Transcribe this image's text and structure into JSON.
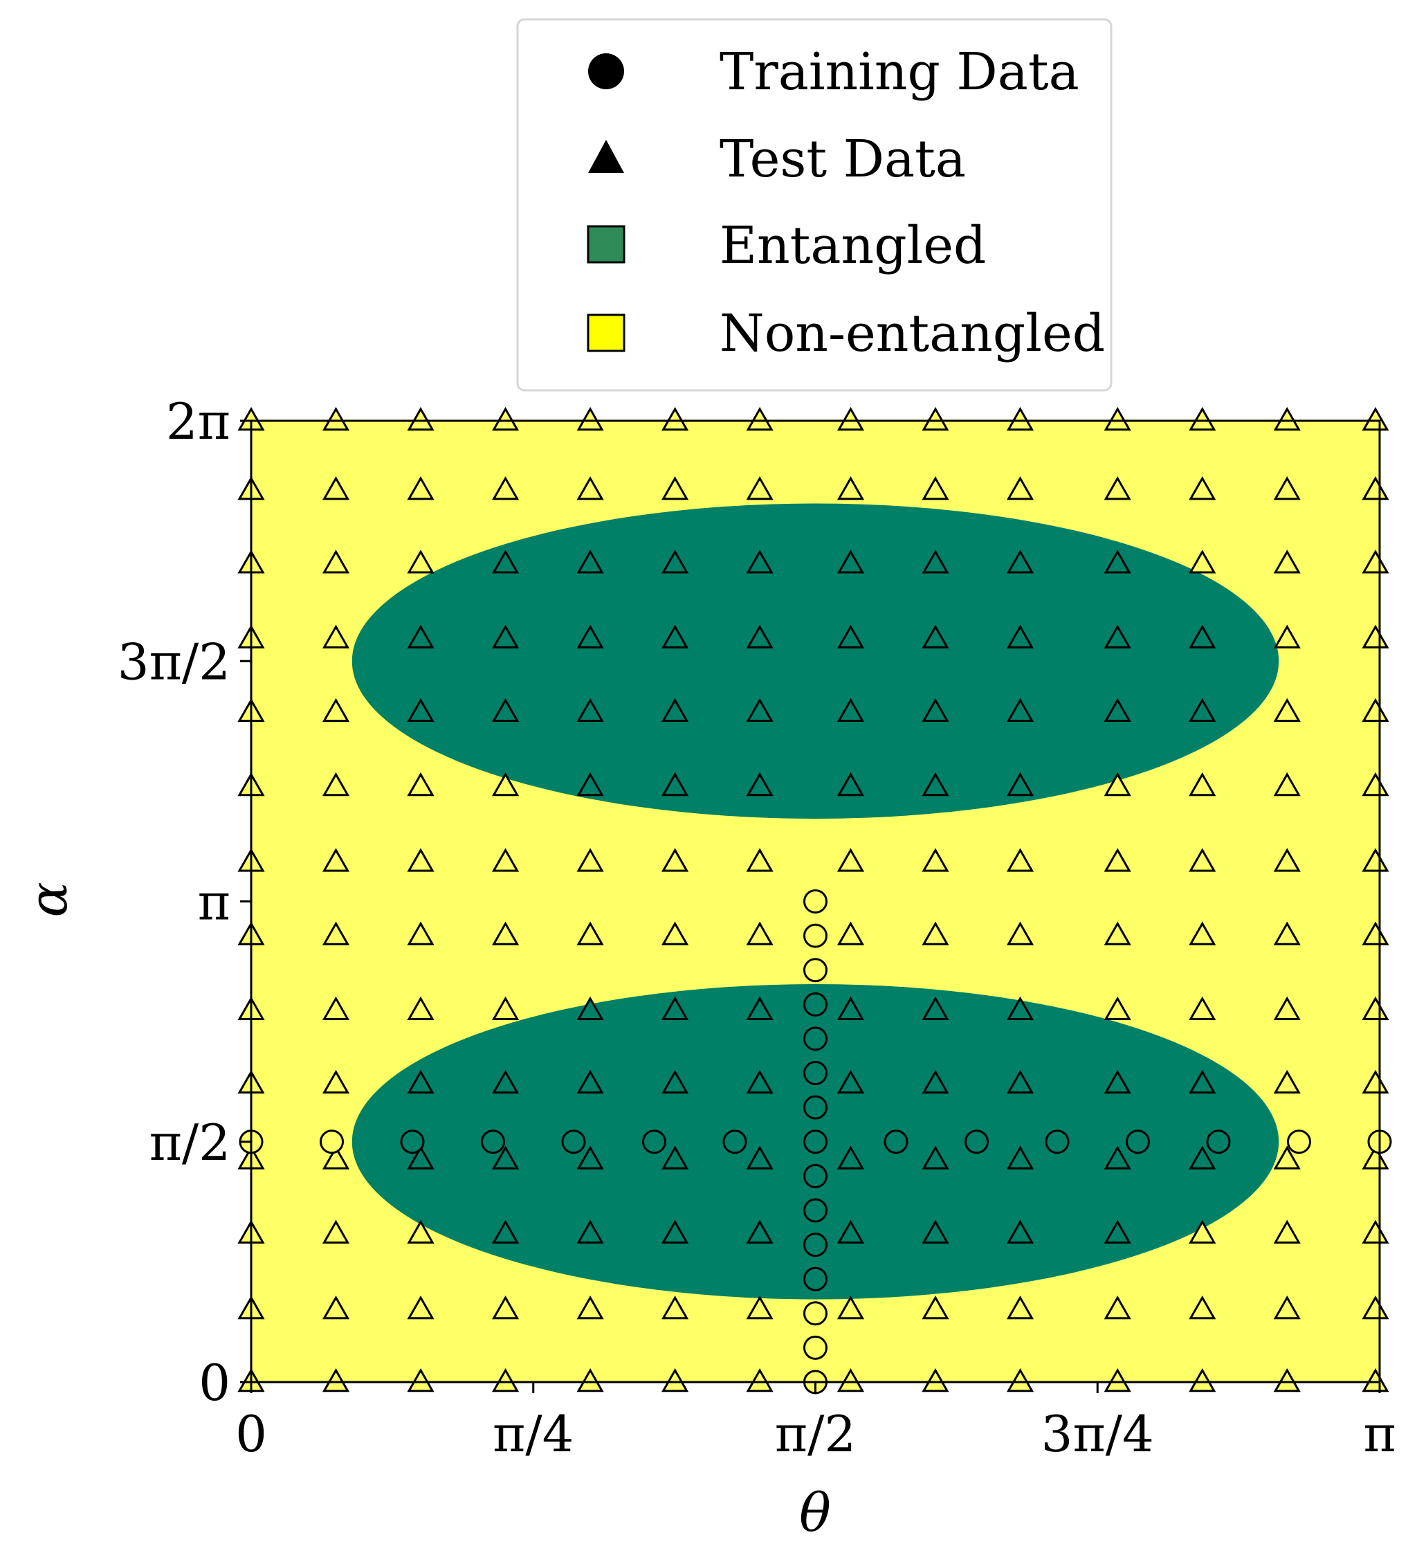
{
  "chart_data": {
    "type": "scatter",
    "xlabel": "θ",
    "ylabel": "α",
    "xlim": [
      0,
      3.14159265
    ],
    "ylim": [
      0,
      6.28318531
    ],
    "x_ticks": [
      {
        "value": 0,
        "label": "0"
      },
      {
        "value": 0.785398,
        "label": "π/4"
      },
      {
        "value": 1.570796,
        "label": "π/2"
      },
      {
        "value": 2.356194,
        "label": "3π/4"
      },
      {
        "value": 3.141593,
        "label": "π"
      }
    ],
    "y_ticks": [
      {
        "value": 0,
        "label": "0"
      },
      {
        "value": 1.570796,
        "label": "π/2"
      },
      {
        "value": 3.141593,
        "label": "π"
      },
      {
        "value": 4.712389,
        "label": "3π/2"
      },
      {
        "value": 6.283185,
        "label": "2π"
      }
    ],
    "grid": false,
    "legend": {
      "placement": "above plot",
      "entries": [
        {
          "label": "Training Data",
          "marker": "circle",
          "color": "#000000"
        },
        {
          "label": "Test Data",
          "marker": "triangle",
          "color": "#000000"
        },
        {
          "label": "Entangled",
          "marker": "square",
          "color": "#2e8b57"
        },
        {
          "label": "Non-entangled",
          "marker": "square",
          "color": "#ffff00"
        }
      ]
    },
    "region_colors": {
      "entangled": "#008066",
      "non_entangled": "#ffff66"
    },
    "regions": {
      "entangled_ellipses": [
        {
          "center": [
            1.570796,
            1.570796
          ],
          "semi_axes": [
            1.29,
            1.03
          ]
        },
        {
          "center": [
            1.570796,
            4.712389
          ],
          "semi_axes": [
            1.29,
            1.03
          ]
        }
      ]
    },
    "series": [
      {
        "name": "Training Data",
        "marker": "circle",
        "points": [
          [
            0.0,
            1.5708
          ],
          [
            0.2244,
            1.5708
          ],
          [
            0.4488,
            1.5708
          ],
          [
            0.6732,
            1.5708
          ],
          [
            0.8976,
            1.5708
          ],
          [
            1.122,
            1.5708
          ],
          [
            1.3464,
            1.5708
          ],
          [
            1.5708,
            1.5708
          ],
          [
            1.7952,
            1.5708
          ],
          [
            2.0196,
            1.5708
          ],
          [
            2.244,
            1.5708
          ],
          [
            2.4684,
            1.5708
          ],
          [
            2.6928,
            1.5708
          ],
          [
            2.9172,
            1.5708
          ],
          [
            3.1416,
            1.5708
          ],
          [
            1.5708,
            0.0
          ],
          [
            1.5708,
            0.2244
          ],
          [
            1.5708,
            0.4488
          ],
          [
            1.5708,
            0.6732
          ],
          [
            1.5708,
            0.8976
          ],
          [
            1.5708,
            1.122
          ],
          [
            1.5708,
            1.3464
          ],
          [
            1.5708,
            1.7952
          ],
          [
            1.5708,
            2.0196
          ],
          [
            1.5708,
            2.244
          ],
          [
            1.5708,
            2.4684
          ],
          [
            1.5708,
            2.6928
          ],
          [
            1.5708,
            2.9172
          ],
          [
            1.5708,
            3.1416
          ]
        ]
      },
      {
        "name": "Test Data",
        "marker": "triangle",
        "x": [
          0.0,
          0.236,
          0.472,
          0.708,
          0.944,
          1.18,
          1.416,
          1.669,
          1.905,
          2.141,
          2.412,
          2.648,
          2.884,
          3.13
        ],
        "y": [
          0.0,
          0.475,
          0.97,
          1.455,
          1.95,
          2.43,
          2.92,
          3.4,
          3.895,
          4.38,
          4.86,
          5.35,
          5.83,
          6.283
        ]
      }
    ]
  }
}
